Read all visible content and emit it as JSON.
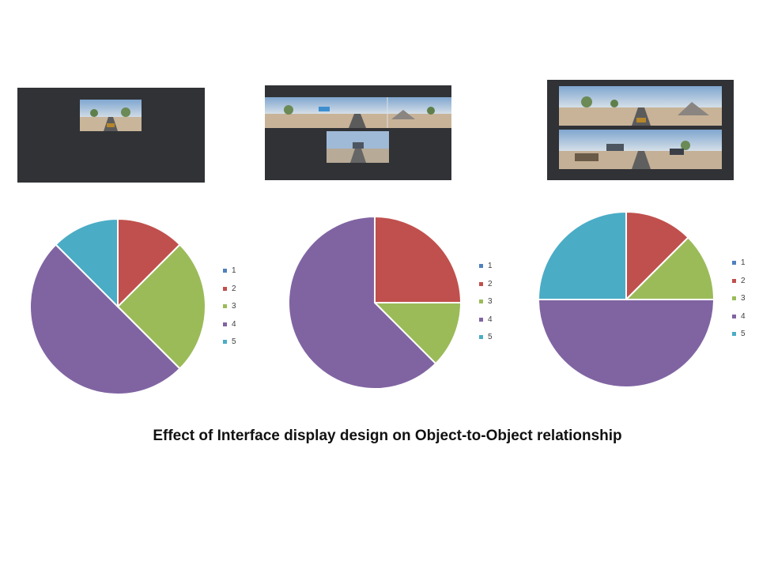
{
  "caption": "Effect of Interface display design on Object-to-Object relationship",
  "colors": {
    "1": "#4f81bd",
    "2": "#c0504d",
    "3": "#9bbb59",
    "4": "#8064a2",
    "5": "#4bacc6"
  },
  "chart_data": [
    {
      "type": "pie",
      "title": "",
      "categories": [
        "1",
        "2",
        "3",
        "4",
        "5"
      ],
      "values": [
        0,
        12.5,
        25,
        50,
        12.5
      ],
      "legend": "right"
    },
    {
      "type": "pie",
      "title": "",
      "categories": [
        "1",
        "2",
        "3",
        "4",
        "5"
      ],
      "values": [
        0,
        25,
        12.5,
        62.5,
        0
      ],
      "legend": "right"
    },
    {
      "type": "pie",
      "title": "",
      "categories": [
        "1",
        "2",
        "3",
        "4",
        "5"
      ],
      "values": [
        0,
        12.5,
        12.5,
        50,
        25
      ],
      "legend": "right"
    }
  ]
}
